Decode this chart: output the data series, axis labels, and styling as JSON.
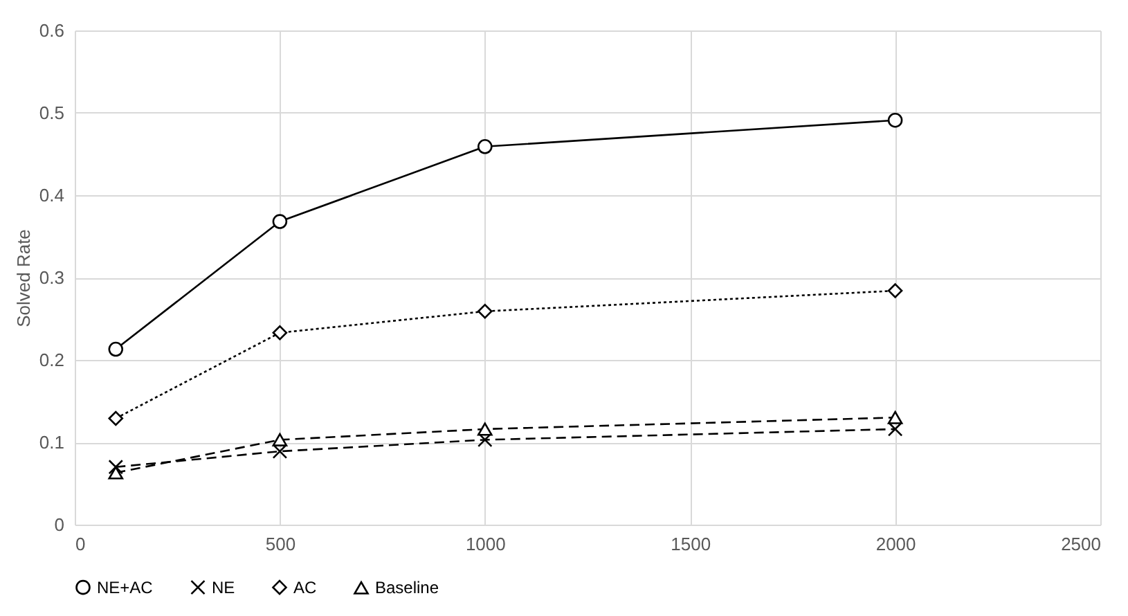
{
  "chart_data": {
    "type": "line",
    "ylabel": "Solved Rate",
    "x": [
      100,
      500,
      1000,
      2000
    ],
    "xlim": [
      0,
      2500
    ],
    "xticks": [
      0,
      500,
      1000,
      1500,
      2000,
      2500
    ],
    "ylim": [
      0,
      0.6
    ],
    "yticks": [
      0,
      0.1,
      0.2,
      0.3,
      0.4,
      0.5,
      0.6
    ],
    "grid": true,
    "legend": "bottom",
    "series": [
      {
        "name": "NE+AC",
        "color": "#000000",
        "values": [
          0.213,
          0.368,
          0.459,
          0.491
        ],
        "marker": "circle",
        "line_style": "solid"
      },
      {
        "name": "NE",
        "color": "#000000",
        "values": [
          0.07,
          0.089,
          0.103,
          0.116
        ],
        "marker": "cross",
        "line_style": "dashed"
      },
      {
        "name": "AC",
        "color": "#000000",
        "values": [
          0.129,
          0.233,
          0.259,
          0.284
        ],
        "marker": "diamond",
        "line_style": "dotted"
      },
      {
        "name": "Baseline",
        "color": "#000000",
        "values": [
          0.063,
          0.103,
          0.116,
          0.13
        ],
        "marker": "triangle",
        "line_style": "dashed"
      }
    ]
  }
}
